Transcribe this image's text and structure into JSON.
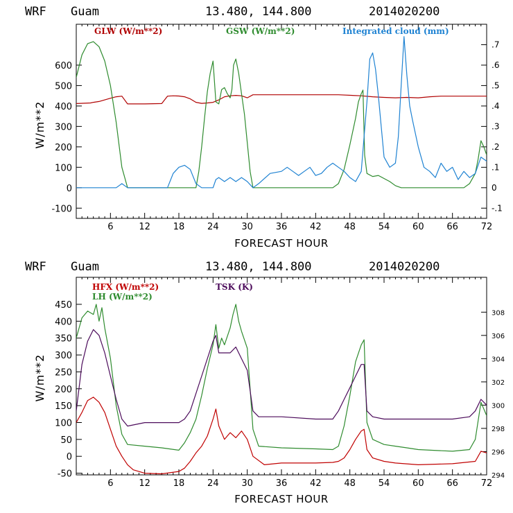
{
  "colors": {
    "glw": "#b00000",
    "gsw": "#2e8b2e",
    "cloud": "#1e82d2",
    "hfx": "#c00000",
    "lh": "#2e8b2e",
    "tsk": "#4b0a5a"
  },
  "chart_data": [
    {
      "type": "line",
      "header": {
        "model": "WRF",
        "location": "Guam",
        "coords": "13.480, 144.800",
        "init": "2014020200"
      },
      "xlabel": "FORECAST HOUR",
      "ylabel": "W/m**2",
      "xlim": [
        0,
        72
      ],
      "ylim": [
        -150,
        800
      ],
      "y2lim": [
        -0.15,
        0.8
      ],
      "xticks": [
        6,
        12,
        18,
        24,
        30,
        36,
        42,
        48,
        54,
        60,
        66,
        72
      ],
      "yticks": [
        -100,
        0,
        100,
        200,
        300,
        400,
        500,
        600
      ],
      "yticklabels": [
        "-100",
        "0",
        "100",
        "200",
        "300",
        "400",
        "500",
        "600"
      ],
      "y2ticks": [
        -0.1,
        0,
        0.1,
        0.2,
        0.3,
        0.4,
        0.5,
        0.6,
        0.7
      ],
      "y2ticklabels": [
        "-.1",
        "0",
        ".1",
        ".2",
        ".3",
        ".4",
        ".5",
        ".6",
        ".7"
      ],
      "series": [
        {
          "name": "GLW (W/m**2)",
          "color_key": "glw",
          "axis": "left",
          "x": [
            0,
            2.5,
            3,
            4,
            5,
            6,
            7,
            8,
            9,
            12,
            15,
            16,
            17,
            18,
            19,
            20,
            21,
            22,
            23,
            24,
            25,
            26,
            27,
            28,
            29,
            30,
            31,
            34,
            40,
            46,
            50,
            52,
            54,
            56,
            58,
            60,
            62,
            64,
            66,
            68,
            70,
            72
          ],
          "values": [
            412,
            415,
            418,
            422,
            430,
            438,
            445,
            448,
            410,
            410,
            412,
            448,
            450,
            449,
            445,
            435,
            418,
            413,
            415,
            418,
            430,
            445,
            450,
            452,
            450,
            440,
            455,
            455,
            455,
            455,
            450,
            445,
            442,
            440,
            442,
            440,
            445,
            448,
            448,
            448,
            448,
            448
          ]
        },
        {
          "name": "GSW (W/m**2)",
          "color_key": "gsw",
          "axis": "left",
          "x": [
            0,
            1,
            2,
            3,
            4,
            5,
            6,
            7,
            8,
            9,
            18,
            21,
            21.5,
            22,
            22.5,
            23,
            23.5,
            24,
            24.5,
            25,
            25.5,
            26,
            26.5,
            27,
            27.3,
            27.6,
            28,
            28.5,
            29,
            29.5,
            30,
            30.5,
            31,
            45,
            46,
            47,
            48,
            49,
            49.5,
            50,
            50.3,
            50.6,
            51,
            52,
            53,
            54,
            55,
            56,
            57,
            58,
            68,
            69,
            70,
            70.5,
            71,
            71.5,
            72
          ],
          "values": [
            540,
            650,
            705,
            715,
            690,
            620,
            500,
            320,
            100,
            0,
            0,
            0,
            80,
            200,
            340,
            470,
            560,
            620,
            420,
            410,
            480,
            490,
            460,
            440,
            480,
            600,
            630,
            560,
            460,
            360,
            220,
            80,
            0,
            0,
            20,
            90,
            210,
            340,
            420,
            460,
            478,
            160,
            70,
            55,
            60,
            45,
            30,
            10,
            0,
            0,
            0,
            20,
            70,
            140,
            230,
            200,
            160
          ]
        },
        {
          "name": "Integrated cloud (mm)",
          "color_key": "cloud",
          "axis": "right",
          "x": [
            0,
            7,
            8,
            9,
            16,
            17,
            18,
            19,
            20,
            21,
            22,
            24,
            24.5,
            25,
            26,
            27,
            28,
            29,
            30,
            31,
            32,
            34,
            36,
            37,
            38,
            39,
            40,
            41,
            42,
            43,
            44,
            45,
            46,
            47,
            48,
            49,
            50,
            50.5,
            51,
            51.5,
            52,
            52.5,
            53,
            53.5,
            54,
            55,
            56,
            56.5,
            57,
            57.5,
            58,
            58.5,
            59,
            60,
            61,
            62,
            63,
            64,
            65,
            66,
            67,
            68,
            69,
            70,
            71,
            72
          ],
          "values": [
            0,
            0,
            0.02,
            0,
            0,
            0.07,
            0.1,
            0.11,
            0.09,
            0.02,
            0,
            0,
            0.04,
            0.05,
            0.03,
            0.05,
            0.03,
            0.05,
            0.03,
            0,
            0.02,
            0.07,
            0.08,
            0.1,
            0.08,
            0.06,
            0.08,
            0.1,
            0.06,
            0.07,
            0.1,
            0.12,
            0.1,
            0.08,
            0.05,
            0.03,
            0.08,
            0.25,
            0.42,
            0.63,
            0.66,
            0.58,
            0.45,
            0.3,
            0.15,
            0.1,
            0.12,
            0.25,
            0.5,
            0.74,
            0.55,
            0.4,
            0.33,
            0.2,
            0.1,
            0.08,
            0.05,
            0.12,
            0.08,
            0.1,
            0.04,
            0.08,
            0.05,
            0.07,
            0.15,
            0.13
          ]
        }
      ]
    },
    {
      "type": "line",
      "header": {
        "model": "WRF",
        "location": "Guam",
        "coords": "13.480, 144.800",
        "init": "2014020200"
      },
      "xlabel": "FORECAST HOUR",
      "ylabel": "W/m**2",
      "xlim": [
        0,
        72
      ],
      "ylim": [
        -55,
        530
      ],
      "y2lim": [
        294,
        311
      ],
      "xticks": [
        6,
        12,
        18,
        24,
        30,
        36,
        42,
        48,
        54,
        60,
        66,
        72
      ],
      "yticks": [
        -50,
        0,
        50,
        100,
        150,
        200,
        250,
        300,
        350,
        400,
        450
      ],
      "yticklabels": [
        "-50",
        "0",
        "50",
        "100",
        "150",
        "200",
        "250",
        "300",
        "350",
        "400",
        "450"
      ],
      "y2ticks": [
        294,
        296,
        298,
        300,
        302,
        304,
        306,
        308
      ],
      "y2ticklabels": [
        "294",
        "296",
        "298",
        "300",
        "302",
        "304",
        "306",
        "308"
      ],
      "series": [
        {
          "name": "HFX (W/m**2)",
          "color_key": "hfx",
          "axis": "left",
          "x": [
            0,
            1,
            2,
            3,
            4,
            5,
            6,
            7,
            8,
            9,
            10,
            12,
            15,
            18,
            19,
            20,
            21,
            22,
            23,
            24,
            24.5,
            25,
            26,
            27,
            28,
            29,
            30,
            31,
            33,
            36,
            42,
            45,
            46,
            47,
            48,
            49,
            50,
            50.5,
            51,
            52,
            54,
            56,
            60,
            66,
            70,
            71,
            72
          ],
          "values": [
            100,
            130,
            165,
            175,
            160,
            130,
            80,
            30,
            0,
            -25,
            -40,
            -50,
            -52,
            -45,
            -35,
            -15,
            10,
            30,
            60,
            110,
            140,
            90,
            50,
            70,
            55,
            75,
            50,
            0,
            -25,
            -20,
            -20,
            -18,
            -15,
            -5,
            20,
            50,
            75,
            80,
            20,
            -5,
            -15,
            -20,
            -25,
            -22,
            -15,
            15,
            10
          ]
        },
        {
          "name": "LH (W/m**2)",
          "color_key": "lh",
          "axis": "left",
          "x": [
            0,
            1,
            2,
            3,
            3.5,
            4,
            4.5,
            5,
            6,
            7,
            8,
            9,
            12,
            15,
            18,
            19,
            20,
            21,
            22,
            23,
            24,
            24.5,
            25,
            25.5,
            26,
            27,
            27.5,
            28,
            28.5,
            29,
            30,
            31,
            32,
            36,
            42,
            45,
            46,
            47,
            48,
            49,
            50,
            50.5,
            51,
            52,
            54,
            56,
            58,
            60,
            66,
            69,
            70,
            71,
            72
          ],
          "values": [
            350,
            410,
            430,
            420,
            450,
            400,
            440,
            380,
            290,
            150,
            65,
            35,
            30,
            25,
            18,
            40,
            70,
            110,
            180,
            260,
            330,
            390,
            320,
            350,
            330,
            380,
            420,
            450,
            400,
            370,
            320,
            80,
            30,
            25,
            22,
            20,
            30,
            90,
            180,
            280,
            330,
            345,
            100,
            50,
            35,
            30,
            25,
            20,
            15,
            20,
            50,
            160,
            120
          ]
        },
        {
          "name": "TSK (K)",
          "color_key": "tsk",
          "axis": "right",
          "x": [
            0,
            1,
            2,
            3,
            4,
            5,
            6,
            7,
            8,
            9,
            12,
            15,
            18,
            19,
            20,
            21,
            22,
            23,
            24,
            24.5,
            25,
            26,
            27,
            28,
            29,
            30,
            31,
            32,
            36,
            42,
            45,
            46,
            47,
            48,
            49,
            50,
            50.5,
            51,
            52,
            54,
            56,
            60,
            66,
            69,
            70,
            71,
            72
          ],
          "values": [
            299.5,
            303.5,
            305.5,
            306.5,
            306,
            304.5,
            302.5,
            300.5,
            298.8,
            298.2,
            298.5,
            298.5,
            298.5,
            298.8,
            299.5,
            301,
            302.5,
            304,
            305.5,
            306,
            304.5,
            304.5,
            304.5,
            305,
            304,
            303,
            299.5,
            299,
            299,
            298.8,
            298.8,
            299.5,
            300.5,
            301.5,
            302.5,
            303.5,
            303.5,
            299.5,
            299,
            298.8,
            298.8,
            298.8,
            298.8,
            299,
            299.5,
            300.5,
            300
          ]
        }
      ]
    }
  ]
}
